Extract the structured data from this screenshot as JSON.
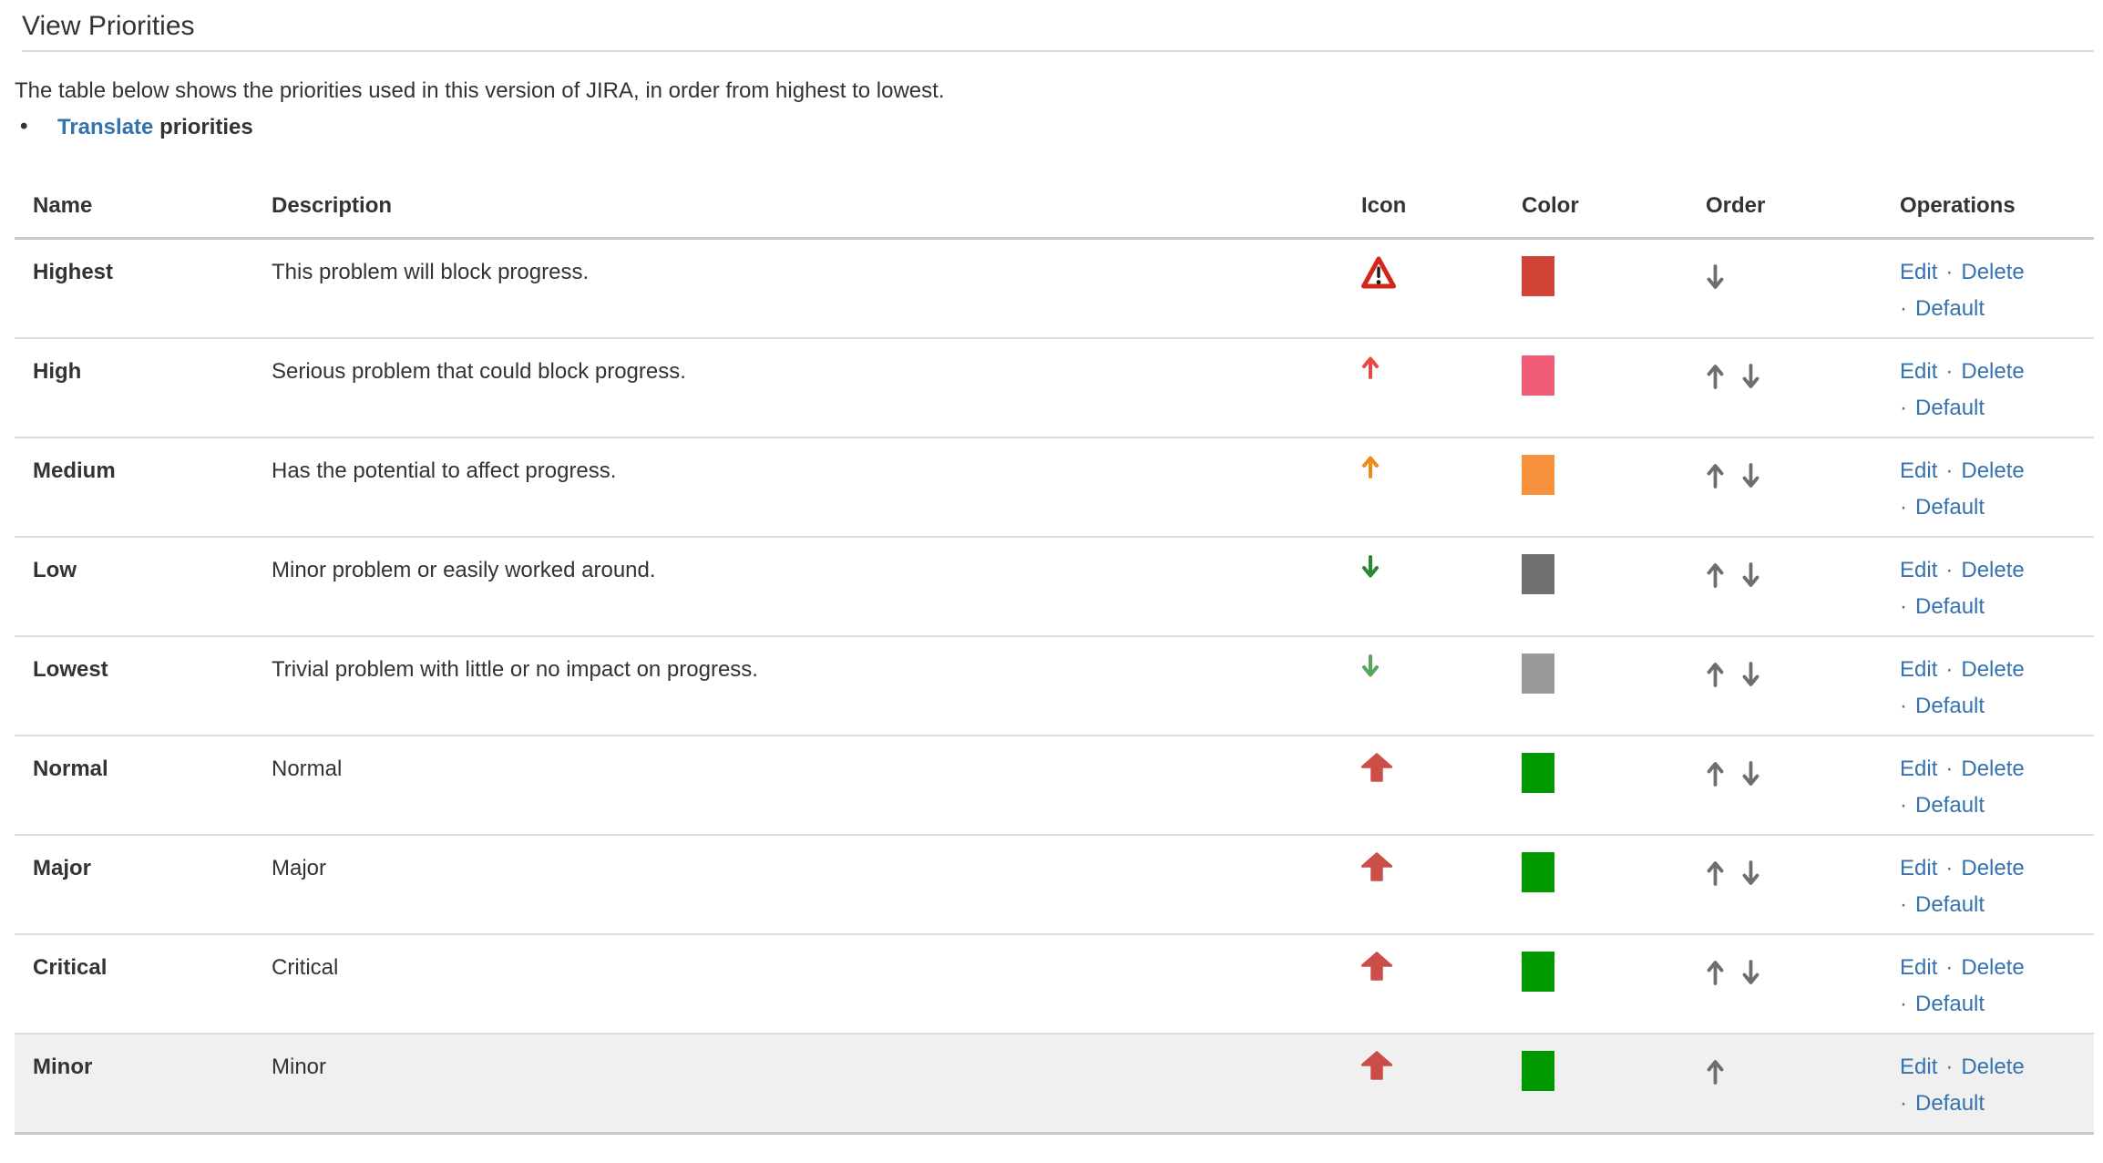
{
  "page": {
    "title": "View Priorities",
    "intro": "The table below shows the priorities used in this version of JIRA, in order from highest to lowest.",
    "bullet": {
      "link": "Translate",
      "rest": "priorities"
    }
  },
  "colors": {
    "link": "#3572b0",
    "text": "#333333",
    "header_border": "#c8c8c8",
    "row_divider": "#dddddd",
    "default_row_background": "#f0f0f0",
    "order_arrow": "#6e6e6e"
  },
  "table": {
    "headers": [
      "Name",
      "Description",
      "Icon",
      "Color",
      "Order",
      "Operations"
    ],
    "operations": {
      "edit": "Edit",
      "delete": "Delete",
      "default": "Default",
      "separator": "·"
    },
    "rows": [
      {
        "name": "Highest",
        "description": "This problem will block progress.",
        "icon": "warning-triangle",
        "icon_color": "#d3261a",
        "color": "#d04437",
        "order_up": false,
        "order_down": true,
        "highlighted": false
      },
      {
        "name": "High",
        "description": "Serious problem that could block progress.",
        "icon": "arrow-up-thin",
        "icon_color": "#e9494a",
        "color": "#f15c75",
        "order_up": true,
        "order_down": true,
        "highlighted": false
      },
      {
        "name": "Medium",
        "description": "Has the potential to affect progress.",
        "icon": "arrow-up-thin",
        "icon_color": "#ee8a16",
        "color": "#f6913e",
        "order_up": true,
        "order_down": true,
        "highlighted": false
      },
      {
        "name": "Low",
        "description": "Minor problem or easily worked around.",
        "icon": "arrow-down-thin",
        "icon_color": "#2a8735",
        "color": "#707070",
        "order_up": true,
        "order_down": true,
        "highlighted": false
      },
      {
        "name": "Lowest",
        "description": "Trivial problem with little or no impact on progress.",
        "icon": "arrow-down-thin",
        "icon_color": "#57a55a",
        "color": "#999999",
        "order_up": true,
        "order_down": true,
        "highlighted": false
      },
      {
        "name": "Normal",
        "description": "Normal",
        "icon": "arrow-up-fat",
        "icon_color": "#c94540",
        "color": "#009900",
        "order_up": true,
        "order_down": true,
        "highlighted": false
      },
      {
        "name": "Major",
        "description": "Major",
        "icon": "arrow-up-fat",
        "icon_color": "#c94540",
        "color": "#009900",
        "order_up": true,
        "order_down": true,
        "highlighted": false
      },
      {
        "name": "Critical",
        "description": "Critical",
        "icon": "arrow-up-fat",
        "icon_color": "#c94540",
        "color": "#009900",
        "order_up": true,
        "order_down": true,
        "highlighted": false
      },
      {
        "name": "Minor",
        "description": "Minor",
        "icon": "arrow-up-fat",
        "icon_color": "#c94540",
        "color": "#009900",
        "order_up": true,
        "order_down": false,
        "highlighted": true
      }
    ]
  }
}
